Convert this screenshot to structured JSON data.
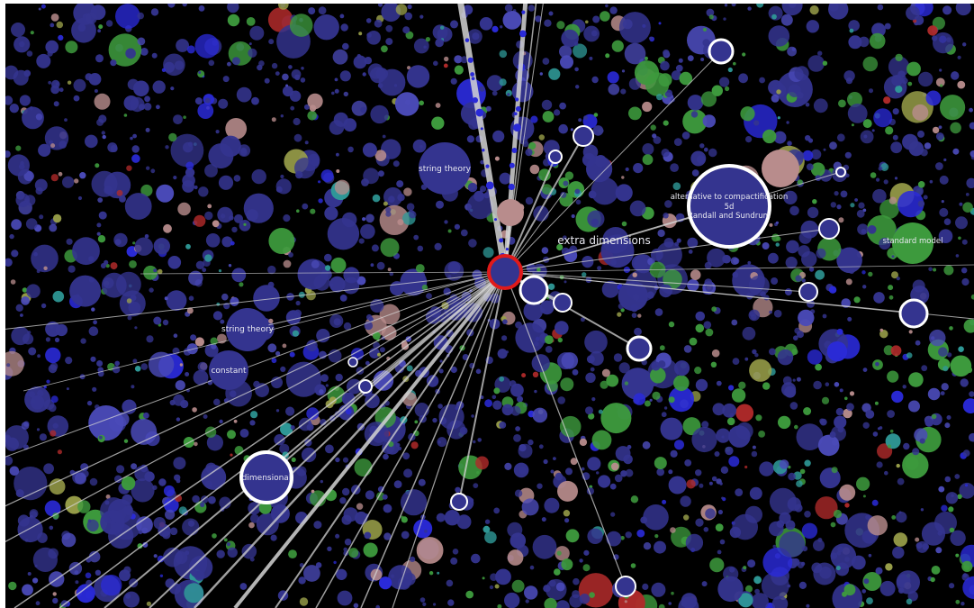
{
  "graph": {
    "labels": {
      "focus_term": "extra dimensions",
      "string_theory_top": "string theory",
      "string_theory_left": "string theory",
      "constant": "constant",
      "dimensional": "dimensional",
      "alternative_line1": "alternative to compactification",
      "alternative_line2": "5d",
      "alternative_line3": "Randall and Sundrum",
      "standard_model": "standard model"
    },
    "colors": {
      "background": "#000000",
      "main_node": "#34348f",
      "focus_ring": "#e01a1a",
      "highlight_ring": "#ffffff",
      "edge": "#d4d4d4",
      "green": "#3d9a3d",
      "pink": "#b88c8c",
      "teal": "#2f9a98",
      "red": "#b02a2a",
      "bright_blue": "#2a2ad8",
      "olive": "#9aa04a"
    }
  }
}
